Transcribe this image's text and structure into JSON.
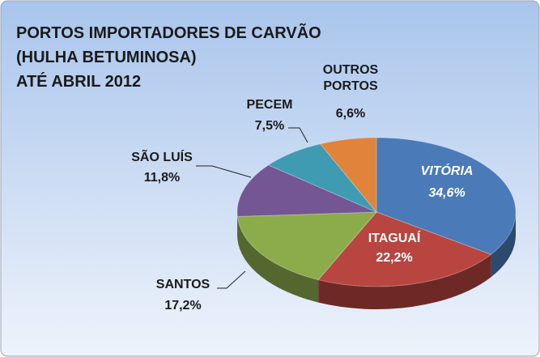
{
  "chart_data": {
    "type": "pie3d",
    "title": [
      "PORTOS IMPORTADORES DE CARVÃO",
      "(HULHA BETUMINOSA)",
      "ATÉ ABRIL 2012"
    ],
    "categories": [
      "VITÓRIA",
      "ITAGUAÍ",
      "SANTOS",
      "SÃO LUÍS",
      "PECEM",
      "OUTROS PORTOS"
    ],
    "values": [
      34.6,
      22.2,
      17.2,
      11.8,
      7.5,
      6.6
    ],
    "value_labels": [
      "34,6%",
      "22,2%",
      "17,2%",
      "11,8%",
      "7,5%",
      "6,6%"
    ],
    "colors": [
      "#4a7ab8",
      "#b84540",
      "#8cac4c",
      "#735693",
      "#3f9bb2",
      "#e0843c"
    ]
  }
}
